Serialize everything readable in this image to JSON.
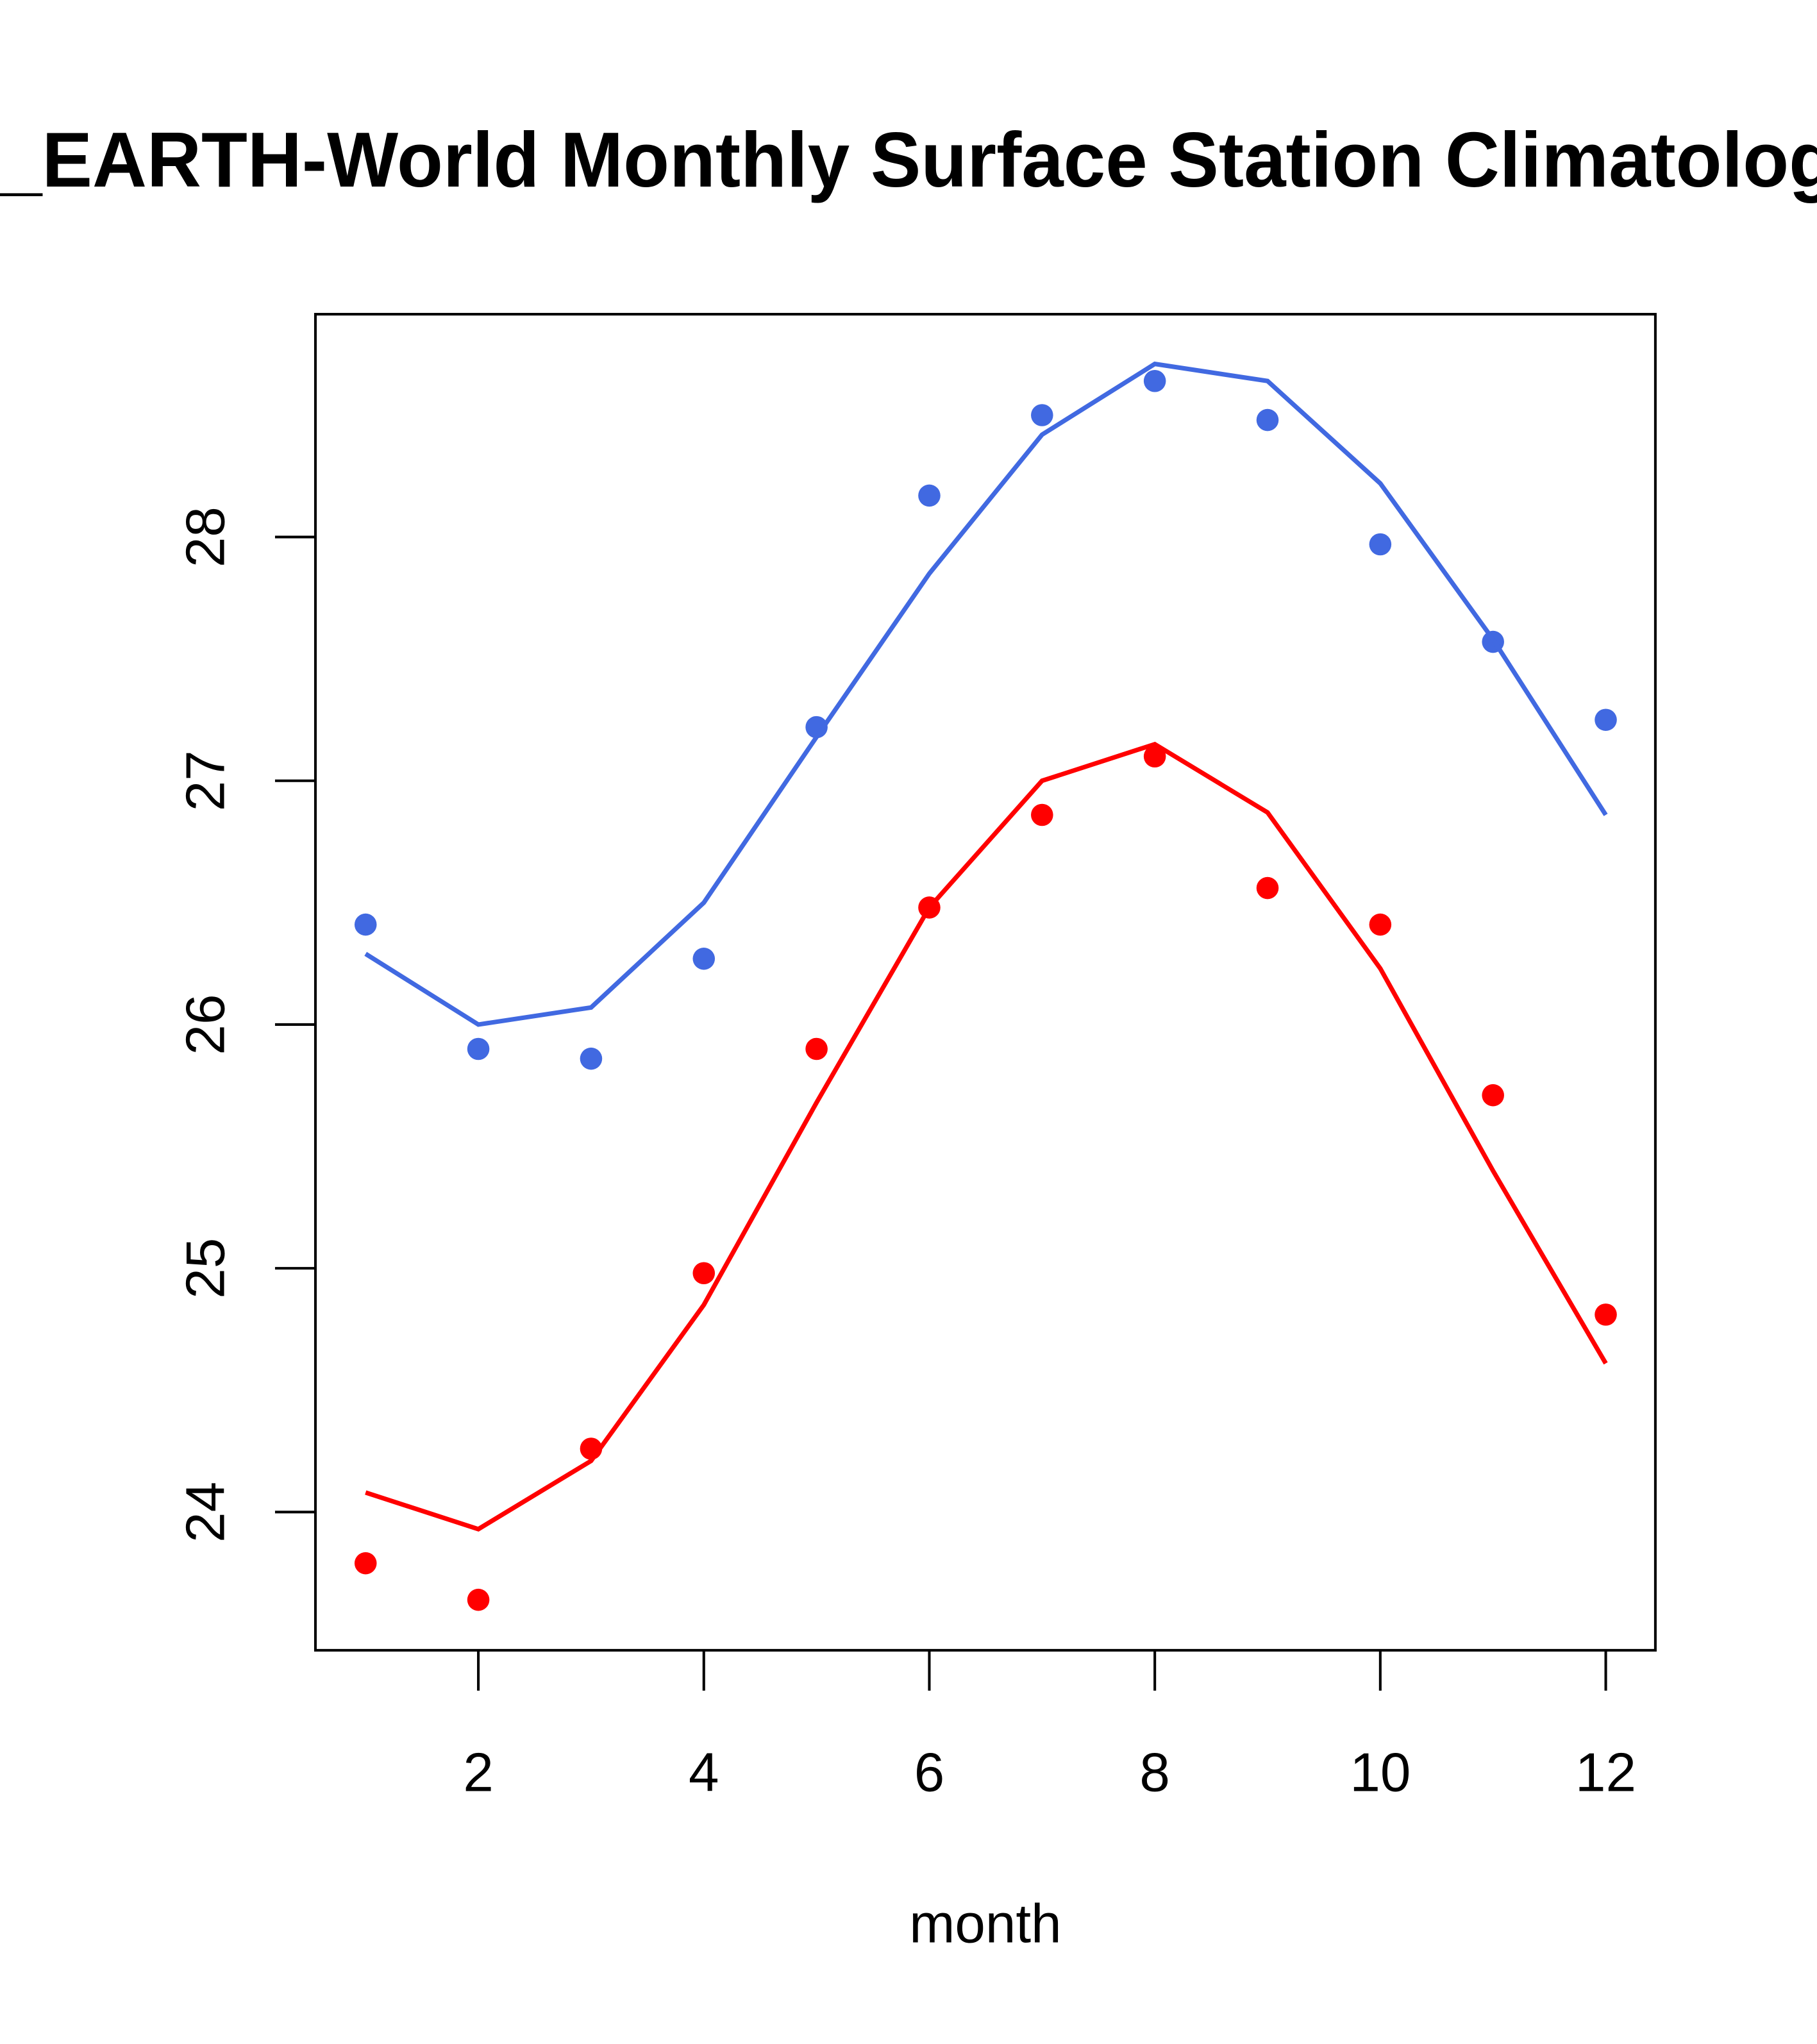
{
  "chart_data": {
    "type": "line",
    "title": "_EARTH-World Monthly Surface Station Climatology",
    "xlabel": "month",
    "ylabel": "",
    "xlim": [
      0.555,
      12.44
    ],
    "ylim": [
      23.433,
      28.914
    ],
    "x": [
      1,
      2,
      3,
      4,
      5,
      6,
      7,
      8,
      9,
      10,
      11,
      12
    ],
    "xticks": [
      2,
      4,
      6,
      8,
      10,
      12
    ],
    "xtick_labels": [
      "2",
      "4",
      "6",
      "8",
      "10",
      "12"
    ],
    "yticks": [
      24,
      25,
      26,
      27,
      28
    ],
    "ytick_labels": [
      "24",
      "25",
      "26",
      "27",
      "28"
    ],
    "grid": false,
    "series": [
      {
        "name": "blue points",
        "kind": "points",
        "color": "#4169E1",
        "values": [
          26.41,
          25.9,
          25.86,
          26.27,
          27.22,
          28.17,
          28.5,
          28.64,
          28.48,
          27.97,
          27.57,
          27.25
        ]
      },
      {
        "name": "blue line",
        "kind": "line",
        "color": "#4169E1",
        "values": [
          26.29,
          26.0,
          26.07,
          26.5,
          27.18,
          27.85,
          28.42,
          28.71,
          28.64,
          28.22,
          27.58,
          26.86
        ]
      },
      {
        "name": "red points",
        "kind": "points",
        "color": "#FF0000",
        "values": [
          23.79,
          23.64,
          24.26,
          24.98,
          25.9,
          26.48,
          26.86,
          27.1,
          26.56,
          26.41,
          25.71,
          24.81
        ]
      },
      {
        "name": "red line",
        "kind": "line",
        "color": "#FF0000",
        "values": [
          24.08,
          23.93,
          24.21,
          24.85,
          25.68,
          26.48,
          27.0,
          27.15,
          26.87,
          26.23,
          25.4,
          24.61
        ]
      }
    ]
  }
}
